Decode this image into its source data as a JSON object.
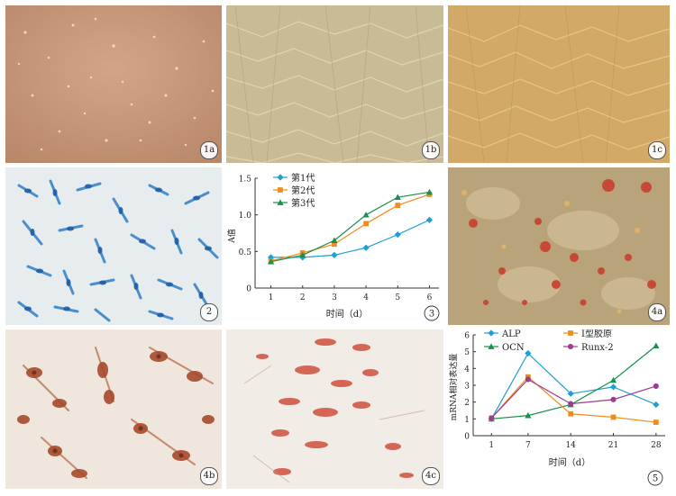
{
  "panels": {
    "p1a": {
      "label": "1a"
    },
    "p1b": {
      "label": "1b"
    },
    "p1c": {
      "label": "1c"
    },
    "p2": {
      "label": "2"
    },
    "p4a": {
      "label": "4a"
    },
    "p4b": {
      "label": "4b"
    },
    "p4c": {
      "label": "4c"
    }
  },
  "chart_data": [
    {
      "type": "line",
      "panel_label": "3",
      "title": "",
      "xlabel": "时间（d）",
      "ylabel": "A值",
      "x": [
        1,
        2,
        3,
        4,
        5,
        6
      ],
      "xlim": [
        0.5,
        6.3
      ],
      "ylim": [
        0,
        1.5
      ],
      "yticks": [
        "0",
        "0.5",
        "1.0",
        "1.5"
      ],
      "grid": false,
      "legend": "top-left",
      "series": [
        {
          "name": "第1代",
          "marker": "diamond",
          "color": "#1e9fd6",
          "values": [
            0.42,
            0.42,
            0.45,
            0.55,
            0.73,
            0.93
          ]
        },
        {
          "name": "第2代",
          "marker": "square",
          "color": "#f08c1c",
          "values": [
            0.37,
            0.48,
            0.6,
            0.88,
            1.13,
            1.28
          ]
        },
        {
          "name": "第3代",
          "marker": "triangle",
          "color": "#1a8f4a",
          "values": [
            0.36,
            0.45,
            0.65,
            1.0,
            1.24,
            1.31
          ]
        }
      ]
    },
    {
      "type": "line",
      "panel_label": "5",
      "title": "",
      "xlabel": "时间（d）",
      "ylabel": "mRNA相对表达量",
      "x": [
        1,
        7,
        14,
        21,
        28
      ],
      "xlim": [
        -2,
        29.5
      ],
      "ylim": [
        0,
        6
      ],
      "yticks": [
        "0",
        "1",
        "2",
        "3",
        "4",
        "5",
        "6"
      ],
      "grid": false,
      "legend": "top",
      "series": [
        {
          "name": "ALP",
          "marker": "diamond",
          "color": "#1e9fd6",
          "values": [
            1.0,
            4.9,
            2.5,
            2.9,
            1.85
          ]
        },
        {
          "name": "OCN",
          "marker": "triangle",
          "color": "#1a8f4a",
          "values": [
            1.0,
            1.2,
            1.85,
            3.3,
            5.35
          ]
        },
        {
          "name": "Ⅰ型胶原",
          "marker": "square",
          "color": "#f08c1c",
          "values": [
            1.05,
            3.5,
            1.3,
            1.1,
            0.8
          ]
        },
        {
          "name": "Runx-2",
          "marker": "circle",
          "color": "#9b3d8e",
          "values": [
            1.05,
            3.35,
            1.9,
            2.15,
            2.95
          ]
        }
      ]
    }
  ]
}
